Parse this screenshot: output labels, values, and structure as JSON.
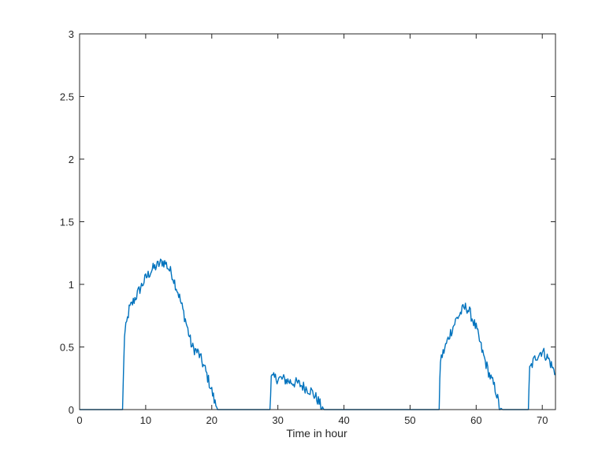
{
  "chart_data": {
    "type": "line",
    "title": "",
    "xlabel": "Time in hour",
    "ylabel": "",
    "xlim": [
      0,
      72
    ],
    "ylim": [
      0,
      3
    ],
    "x_ticks": [
      0,
      10,
      20,
      30,
      40,
      50,
      60,
      70
    ],
    "x_tick_labels": [
      "0",
      "10",
      "20",
      "30",
      "40",
      "50",
      "60",
      "70"
    ],
    "y_ticks": [
      0,
      0.5,
      1,
      1.5,
      2,
      2.5,
      3
    ],
    "y_tick_labels": [
      "0",
      "0.5",
      "1",
      "1.5",
      "2",
      "2.5",
      "3"
    ],
    "grid": false,
    "legend": "none",
    "line_color": "#0072BD",
    "series": [
      {
        "x": [
          0,
          6.5,
          6.8,
          7.0,
          7.5,
          8.0,
          9.0,
          10.0,
          11.0,
          12.0,
          12.5,
          13.0,
          14.0,
          15.0,
          16.0,
          17.0,
          18.0,
          19.0,
          20.0,
          20.5,
          21.0,
          21.3,
          22.0,
          28.8,
          29.0,
          30.0,
          31.0,
          32.0,
          33.0,
          34.0,
          35.0,
          36.0,
          36.5,
          37.0,
          37.3,
          38.0,
          54.4,
          54.6,
          55.0,
          56.0,
          57.0,
          58.0,
          58.5,
          59.0,
          60.0,
          61.0,
          62.0,
          63.0,
          63.5,
          64.0,
          67.9,
          68.1,
          69.0,
          70.0,
          71.0,
          72.0
        ],
        "y": [
          0,
          0,
          0.6,
          0.65,
          0.8,
          0.85,
          0.95,
          1.05,
          1.12,
          1.16,
          1.18,
          1.17,
          1.08,
          0.92,
          0.72,
          0.5,
          0.45,
          0.32,
          0.15,
          0.05,
          0,
          0,
          0,
          0,
          0.25,
          0.25,
          0.24,
          0.22,
          0.21,
          0.18,
          0.15,
          0.08,
          0.03,
          0,
          0,
          0,
          0,
          0.4,
          0.45,
          0.6,
          0.72,
          0.8,
          0.82,
          0.78,
          0.65,
          0.45,
          0.28,
          0.15,
          0.02,
          0,
          0,
          0.32,
          0.42,
          0.47,
          0.4,
          0.28
        ]
      }
    ]
  }
}
